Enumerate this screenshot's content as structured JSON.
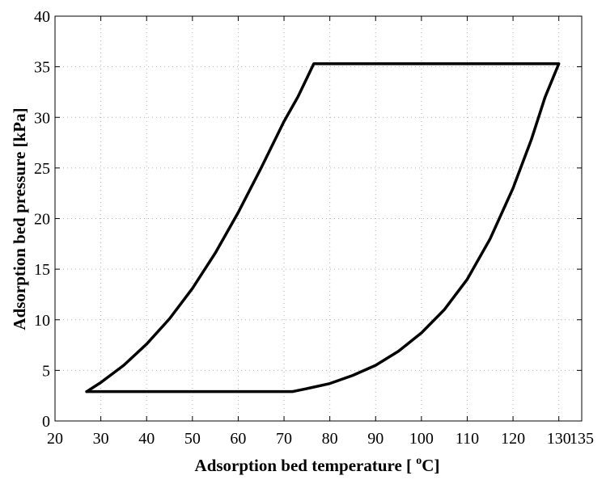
{
  "chart_data": {
    "type": "line",
    "title": "",
    "xlabel": "Adsorption bed temperature  [ ",
    "xlabel_superscript": "o",
    "xlabel_unit": "C]",
    "ylabel": "Adsorption bed pressure  [kPa]",
    "xlim": [
      20,
      135
    ],
    "ylim": [
      0,
      40
    ],
    "xticks": [
      20,
      30,
      40,
      50,
      60,
      70,
      80,
      90,
      100,
      110,
      120,
      130,
      135
    ],
    "xtick_labels": [
      "20",
      "30",
      "40",
      "50",
      "60",
      "70",
      "80",
      "90",
      "100",
      "110",
      "120",
      "130",
      "135"
    ],
    "yticks": [
      0,
      5,
      10,
      15,
      20,
      25,
      30,
      35,
      40
    ],
    "ytick_labels": [
      "0",
      "5",
      "10",
      "15",
      "20",
      "25",
      "30",
      "35",
      "40"
    ],
    "grid": true,
    "grid_style": "dotted",
    "legend": "none",
    "series": [
      {
        "color": "#000000",
        "x": [
          26.9,
          30,
          35,
          40,
          45,
          50,
          55,
          60,
          65,
          70,
          73,
          76.5,
          130,
          127,
          124,
          120,
          115,
          110,
          105,
          100,
          95,
          90,
          85,
          80,
          75,
          71.8,
          26.9
        ],
        "y": [
          2.9,
          3.8,
          5.5,
          7.6,
          10.1,
          13.1,
          16.6,
          20.6,
          25.0,
          29.6,
          32.0,
          35.3,
          35.3,
          32.0,
          27.8,
          23.0,
          18.0,
          14.0,
          11.0,
          8.7,
          6.9,
          5.5,
          4.5,
          3.7,
          3.2,
          2.9,
          2.9
        ]
      }
    ]
  }
}
